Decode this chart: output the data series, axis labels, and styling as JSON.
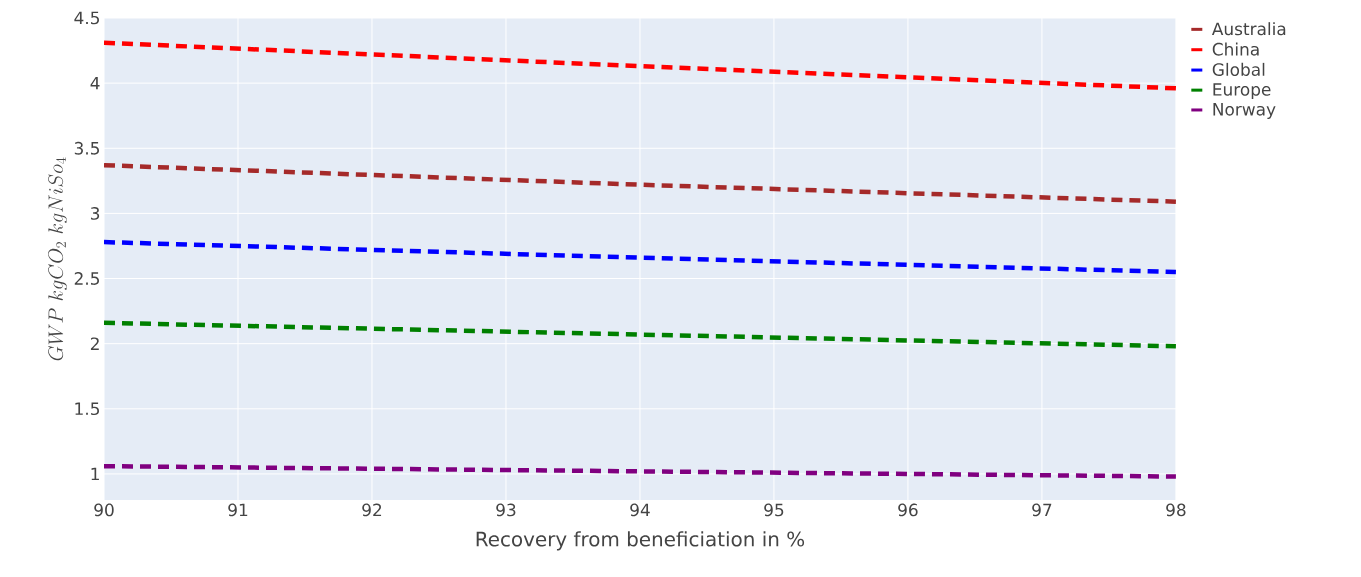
{
  "chart_data": {
    "type": "line",
    "xlabel": "Recovery from beneficiation in %",
    "ylabel": "GWP\\ kgCO_2\\ kgNiSo_4",
    "xlim": [
      90,
      98
    ],
    "xticks": [
      90,
      91,
      92,
      93,
      94,
      95,
      96,
      97,
      98
    ],
    "ylim": [
      0.8,
      4.5
    ],
    "yticks": [
      1,
      1.5,
      2,
      2.5,
      3,
      3.5,
      4,
      4.5
    ],
    "grid": true,
    "legend": "top right",
    "line_style": "dashed",
    "marker": "none",
    "x": [
      90,
      94,
      98
    ],
    "series": [
      {
        "name": "Australia",
        "color": "#a52a2a",
        "values": [
          3.37,
          3.22,
          3.09
        ]
      },
      {
        "name": "China",
        "color": "#ff0000",
        "values": [
          4.31,
          4.13,
          3.96
        ]
      },
      {
        "name": "Global",
        "color": "#0000ff",
        "values": [
          2.78,
          2.66,
          2.55
        ]
      },
      {
        "name": "Europe",
        "color": "#008000",
        "values": [
          2.16,
          2.07,
          1.98
        ]
      },
      {
        "name": "Norway",
        "color": "#800080",
        "values": [
          1.06,
          1.02,
          0.98
        ]
      }
    ]
  }
}
